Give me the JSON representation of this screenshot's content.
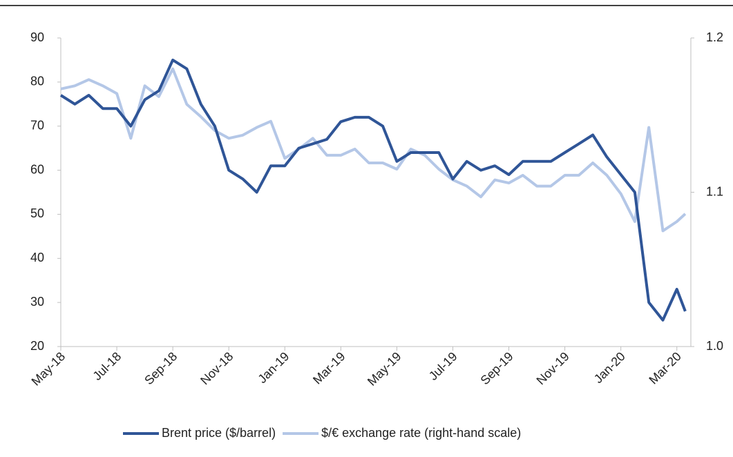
{
  "chart_data": {
    "type": "line",
    "x": [
      0,
      0.5,
      1,
      1.5,
      2,
      2.5,
      3,
      3.5,
      4,
      4.5,
      5,
      5.5,
      6,
      6.5,
      7,
      7.5,
      8,
      8.5,
      9,
      9.5,
      10,
      10.5,
      11,
      11.5,
      12,
      12.5,
      13,
      13.5,
      14,
      14.5,
      15,
      15.5,
      16,
      16.5,
      17,
      17.5,
      18,
      18.5,
      19,
      19.5,
      20,
      20.5,
      21,
      21.5,
      22,
      22.3
    ],
    "xlim": [
      0,
      22.5
    ],
    "xticks": [
      {
        "value": 0,
        "label": "May-18"
      },
      {
        "value": 2,
        "label": "Jul-18"
      },
      {
        "value": 4,
        "label": "Sep-18"
      },
      {
        "value": 6,
        "label": "Nov-18"
      },
      {
        "value": 8,
        "label": "Jan-19"
      },
      {
        "value": 10,
        "label": "Mar-19"
      },
      {
        "value": 12,
        "label": "May-19"
      },
      {
        "value": 14,
        "label": "Jul-19"
      },
      {
        "value": 16,
        "label": "Sep-19"
      },
      {
        "value": 18,
        "label": "Nov-19"
      },
      {
        "value": 20,
        "label": "Jan-20"
      },
      {
        "value": 22,
        "label": "Mar-20"
      }
    ],
    "ylim": [
      20,
      90
    ],
    "yticks": [
      20,
      30,
      40,
      50,
      60,
      70,
      80,
      90
    ],
    "y2lim": [
      1.0,
      1.2
    ],
    "y2ticks": [
      {
        "value": 1.0,
        "label": "1.0"
      },
      1.1,
      1.2
    ],
    "legend": "bottom",
    "series": [
      {
        "name": "Brent price ($/barrel)",
        "color": "#2f5597",
        "values": [
          77,
          75,
          77,
          74,
          74,
          70,
          76,
          78,
          85,
          83,
          75,
          70,
          60,
          58,
          55,
          61,
          61,
          65,
          66,
          67,
          71,
          72,
          72,
          70,
          62,
          64,
          64,
          64,
          58,
          62,
          60,
          61,
          59,
          62,
          62,
          62,
          64,
          66,
          68,
          63,
          59,
          55,
          30,
          26,
          33,
          28
        ]
      },
      {
        "name": "$/€ exchange rate (right-hand scale)",
        "color": "#b4c7e7",
        "axis": "y2",
        "values": [
          1.167,
          1.169,
          1.173,
          1.169,
          1.164,
          1.135,
          1.169,
          1.162,
          1.18,
          1.157,
          1.149,
          1.14,
          1.135,
          1.137,
          1.142,
          1.146,
          1.122,
          1.128,
          1.135,
          1.124,
          1.124,
          1.128,
          1.119,
          1.119,
          1.115,
          1.128,
          1.124,
          1.115,
          1.108,
          1.104,
          1.097,
          1.108,
          1.106,
          1.111,
          1.104,
          1.104,
          1.111,
          1.111,
          1.119,
          1.111,
          1.099,
          1.081,
          1.142,
          1.075,
          1.081,
          1.086
        ]
      }
    ]
  }
}
